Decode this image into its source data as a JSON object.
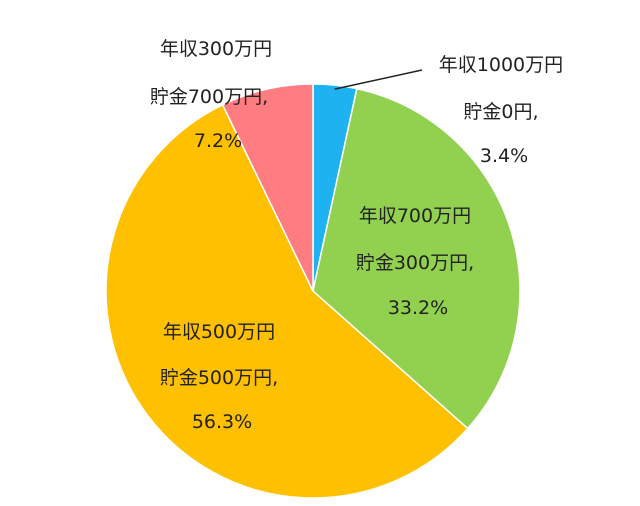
{
  "chart_data": {
    "type": "pie",
    "start_angle_deg": 0,
    "direction": "clockwise",
    "legend": "none",
    "slices": [
      {
        "lines": [
          "年収1000万円",
          "貯金0円,",
          "3.4%"
        ],
        "value": 3.4,
        "color": "#1FB2F0"
      },
      {
        "lines": [
          "年収700万円",
          "貯金300万円,",
          "33.2%"
        ],
        "value": 33.2,
        "color": "#92D050"
      },
      {
        "lines": [
          "年収500万円",
          "貯金500万円,",
          "56.3%"
        ],
        "value": 56.3,
        "color": "#FFC000"
      },
      {
        "lines": [
          "年収300万円",
          "貯金700万円,",
          "7.2%"
        ],
        "value": 7.2,
        "color": "#FF7C80"
      }
    ]
  }
}
